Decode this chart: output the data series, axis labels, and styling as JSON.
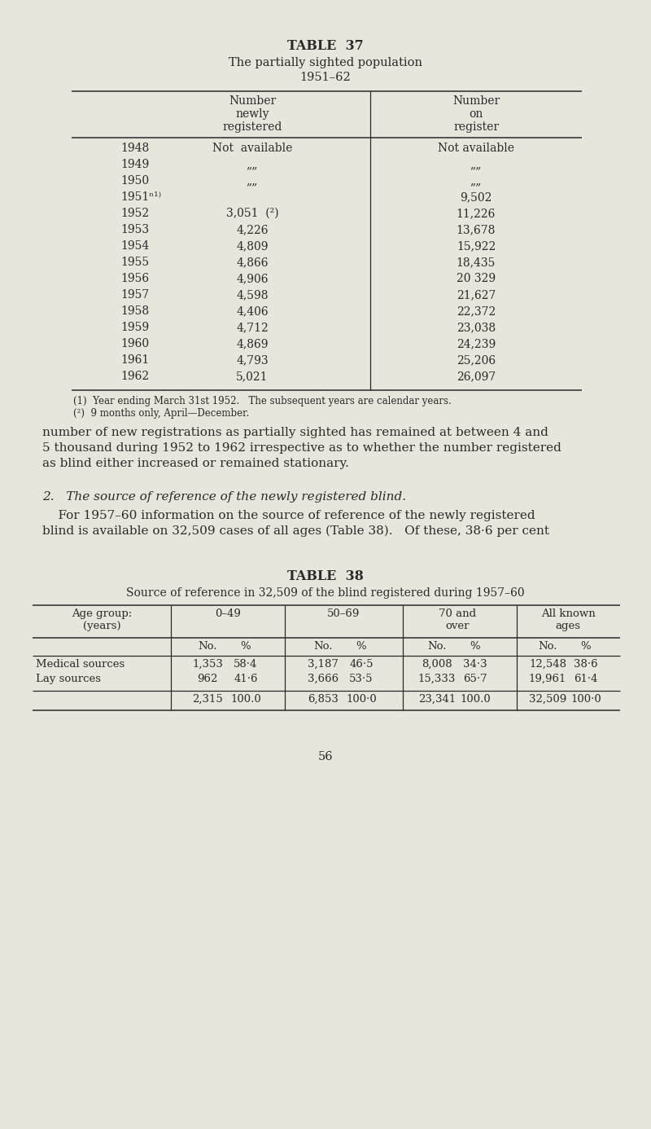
{
  "bg_color": "#e8e5dc",
  "text_color": "#2a2a2a",
  "page_width": 8.0,
  "page_height": 13.86,
  "table37_title": "TABLE  37",
  "table37_subtitle1": "The partially sighted population",
  "table37_subtitle2": "1951–62",
  "table37_col2_header": "Number\nnewly\nregistered",
  "table37_col3_header": "Number\non\nregister",
  "table37_rows": [
    [
      "1948",
      "Not  available",
      "Not available"
    ],
    [
      "1949",
      "„„",
      "„„"
    ],
    [
      "1950",
      "„„",
      "„„"
    ],
    [
      "1951ⁿ¹⁾",
      "",
      "9,502"
    ],
    [
      "1952",
      "3,051  (²)",
      "11,226"
    ],
    [
      "1953",
      "4,226",
      "13,678"
    ],
    [
      "1954",
      "4,809",
      "15,922"
    ],
    [
      "1955",
      "4,866",
      "18,435"
    ],
    [
      "1956",
      "4,906",
      "20 329"
    ],
    [
      "1957",
      "4,598",
      "21,627"
    ],
    [
      "1958",
      "4,406",
      "22,372"
    ],
    [
      "1959",
      "4,712",
      "23,038"
    ],
    [
      "1960",
      "4,869",
      "24,239"
    ],
    [
      "1961",
      "4,793",
      "25,206"
    ],
    [
      "1962",
      "5,021",
      "26,097"
    ]
  ],
  "table37_footnote1": "(1)  Year ending March 31st 1952.   The subsequent years are calendar years.",
  "table37_footnote2": "(²)  9 months only, April—December.",
  "para1_lines": [
    "number of new registrations as partially sighted has remained at between 4 and",
    "5 thousand during 1952 to 1962 irrespective as to whether the number registered",
    "as blind either increased or remained stationary."
  ],
  "section_heading": "2.   The source of reference of the newly registered blind.",
  "para2_lines": [
    "    For 1957–60 information on the source of reference of the newly registered",
    "blind is available on 32,509 cases of all ages (Table 38).   Of these, 38·6 per cent"
  ],
  "table38_title": "TABLE  38",
  "table38_subtitle": "Source of reference in 32,509 of the blind registered during 1957–60",
  "table38_age_header": "Age group:\n(years)",
  "table38_col_headers": [
    "0–49",
    "50–69",
    "70 and\nover",
    "All known\nages"
  ],
  "table38_rows": [
    [
      "Medical sources",
      "1,353",
      "58·4",
      "3,187",
      "46·5",
      "8,008",
      "34·3",
      "12,548",
      "38·6"
    ],
    [
      "Lay sources",
      "962",
      "41·6",
      "3,666",
      "53·5",
      "15,333",
      "65·7",
      "19,961",
      "61·4"
    ]
  ],
  "table38_totals": [
    "2,315",
    "100.0",
    "6,853",
    "100·0",
    "23,341",
    "100.0",
    "32,509",
    "100·0"
  ],
  "page_number": "56"
}
